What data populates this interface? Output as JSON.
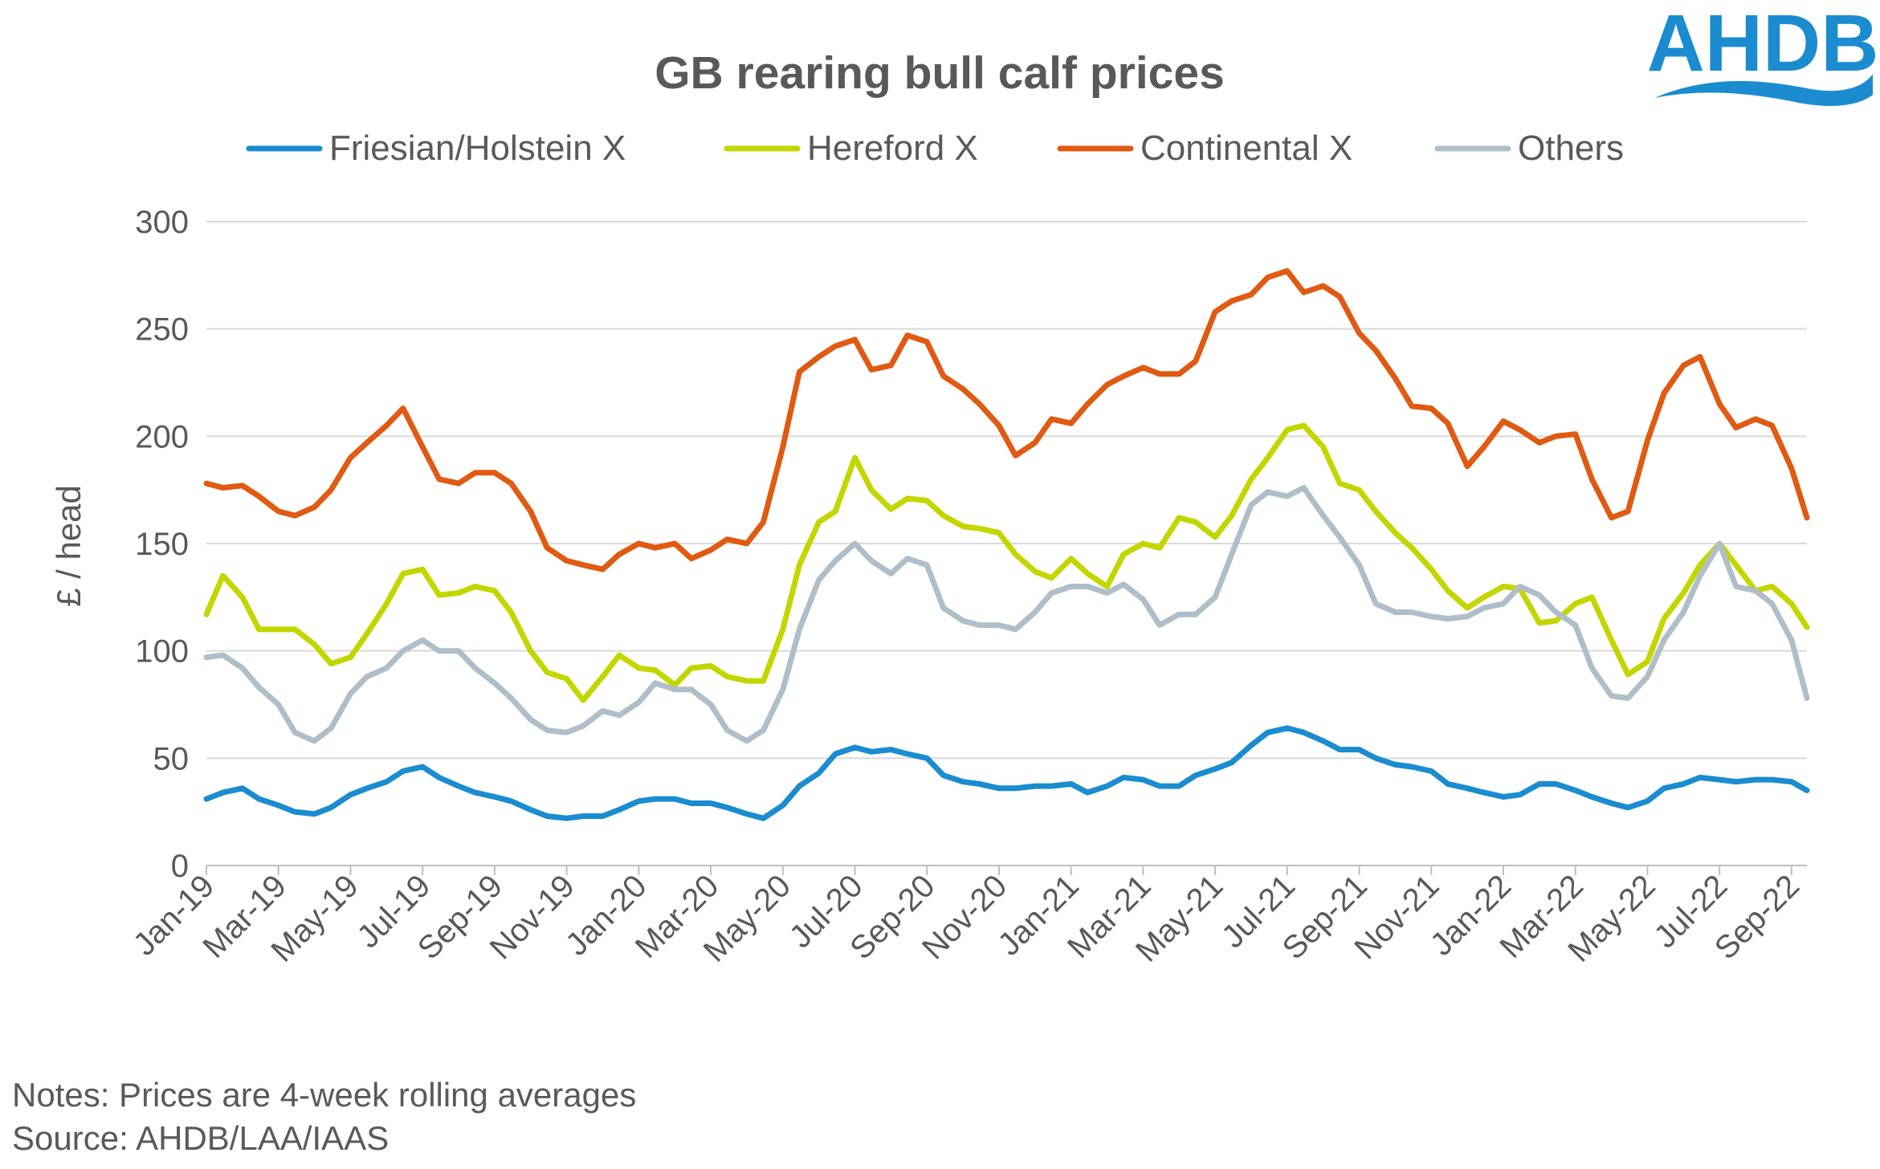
{
  "logo": {
    "text": "AHDB",
    "color": "#1a8ccf"
  },
  "notes": "Notes: Prices are 4-week rolling averages",
  "source": "Source: AHDB/LAA/IAAS",
  "chart_data": {
    "type": "line",
    "title": "GB rearing bull calf prices",
    "xlabel": "",
    "ylabel": "£ / head",
    "ylim": [
      0,
      300
    ],
    "yticks": [
      "0",
      "50",
      "100",
      "150",
      "200",
      "250",
      "300"
    ],
    "xticks": [
      "Jan-19",
      "Mar-19",
      "May-19",
      "Jul-19",
      "Sep-19",
      "Nov-19",
      "Jan-20",
      "Mar-20",
      "May-20",
      "Jul-20",
      "Sep-20",
      "Nov-20",
      "Jan-21",
      "Mar-21",
      "May-21",
      "Jul-21",
      "Sep-21",
      "Nov-21",
      "Jan-22",
      "Mar-22",
      "May-22",
      "Jul-22",
      "Sep-22"
    ],
    "xlim": [
      "2019-01-01",
      "2022-09-14"
    ],
    "grid": "horizontal",
    "legend_position": "top",
    "x": [
      "2019-01-01",
      "2019-01-15",
      "2019-02-01",
      "2019-02-15",
      "2019-03-01",
      "2019-03-15",
      "2019-04-01",
      "2019-04-15",
      "2019-05-01",
      "2019-05-15",
      "2019-06-01",
      "2019-06-15",
      "2019-07-01",
      "2019-07-15",
      "2019-08-01",
      "2019-08-15",
      "2019-09-01",
      "2019-09-15",
      "2019-10-01",
      "2019-10-15",
      "2019-11-01",
      "2019-11-15",
      "2019-12-01",
      "2019-12-15",
      "2020-01-01",
      "2020-01-15",
      "2020-02-01",
      "2020-02-15",
      "2020-03-01",
      "2020-03-15",
      "2020-04-01",
      "2020-04-15",
      "2020-05-01",
      "2020-05-15",
      "2020-06-01",
      "2020-06-15",
      "2020-07-01",
      "2020-07-15",
      "2020-08-01",
      "2020-08-15",
      "2020-09-01",
      "2020-09-15",
      "2020-10-01",
      "2020-10-15",
      "2020-11-01",
      "2020-11-15",
      "2020-12-01",
      "2020-12-15",
      "2021-01-01",
      "2021-01-15",
      "2021-02-01",
      "2021-02-15",
      "2021-03-01",
      "2021-03-15",
      "2021-04-01",
      "2021-04-15",
      "2021-05-01",
      "2021-05-15",
      "2021-06-01",
      "2021-06-15",
      "2021-07-01",
      "2021-07-15",
      "2021-08-01",
      "2021-08-15",
      "2021-09-01",
      "2021-09-15",
      "2021-10-01",
      "2021-10-15",
      "2021-11-01",
      "2021-11-15",
      "2021-12-01",
      "2021-12-15",
      "2022-01-01",
      "2022-01-15",
      "2022-02-01",
      "2022-02-15",
      "2022-03-01",
      "2022-03-15",
      "2022-04-01",
      "2022-04-15",
      "2022-05-01",
      "2022-05-15",
      "2022-06-01",
      "2022-06-15",
      "2022-07-01",
      "2022-07-15",
      "2022-08-01",
      "2022-08-15",
      "2022-09-01",
      "2022-09-14"
    ],
    "series": [
      {
        "name": "Friesian/Holstein X",
        "color": "#1a8ccf",
        "values": [
          31,
          34,
          36,
          31,
          28,
          25,
          24,
          27,
          33,
          36,
          39,
          44,
          46,
          41,
          37,
          34,
          32,
          30,
          26,
          23,
          22,
          23,
          23,
          26,
          30,
          31,
          31,
          29,
          29,
          27,
          24,
          22,
          28,
          37,
          43,
          52,
          55,
          53,
          54,
          52,
          50,
          42,
          39,
          38,
          36,
          36,
          37,
          37,
          38,
          34,
          37,
          41,
          40,
          37,
          37,
          42,
          45,
          48,
          56,
          62,
          64,
          62,
          58,
          54,
          54,
          50,
          47,
          46,
          44,
          38,
          36,
          34,
          32,
          33,
          38,
          38,
          35,
          32,
          29,
          27,
          30,
          36,
          38,
          41,
          40,
          39,
          40,
          40,
          39,
          35
        ]
      },
      {
        "name": "Hereford X",
        "color": "#c3d600",
        "values": [
          117,
          135,
          125,
          110,
          110,
          110,
          103,
          94,
          97,
          108,
          122,
          136,
          138,
          126,
          127,
          130,
          128,
          118,
          100,
          90,
          87,
          77,
          88,
          98,
          92,
          91,
          84,
          92,
          93,
          88,
          86,
          86,
          110,
          140,
          160,
          165,
          190,
          175,
          166,
          171,
          170,
          163,
          158,
          157,
          155,
          145,
          137,
          134,
          143,
          136,
          130,
          145,
          150,
          148,
          162,
          160,
          153,
          163,
          180,
          190,
          203,
          205,
          195,
          178,
          175,
          165,
          155,
          148,
          138,
          128,
          120,
          125,
          130,
          129,
          113,
          114,
          122,
          125,
          105,
          89,
          95,
          115,
          127,
          140,
          150,
          140,
          128,
          130,
          122,
          111
        ]
      },
      {
        "name": "Continental X",
        "color": "#e05a12",
        "values": [
          178,
          176,
          177,
          172,
          165,
          163,
          167,
          175,
          190,
          197,
          205,
          213,
          195,
          180,
          178,
          183,
          183,
          178,
          165,
          148,
          142,
          140,
          138,
          145,
          150,
          148,
          150,
          143,
          147,
          152,
          150,
          160,
          195,
          230,
          237,
          242,
          245,
          231,
          233,
          247,
          244,
          228,
          222,
          215,
          205,
          191,
          197,
          208,
          206,
          215,
          224,
          228,
          232,
          229,
          229,
          235,
          258,
          263,
          266,
          274,
          277,
          267,
          270,
          265,
          248,
          240,
          227,
          214,
          213,
          206,
          186,
          195,
          207,
          203,
          197,
          200,
          201,
          180,
          162,
          165,
          198,
          220,
          233,
          237,
          215,
          204,
          208,
          205,
          185,
          162
        ]
      },
      {
        "name": "Others",
        "color": "#aebfc9",
        "values": [
          97,
          98,
          92,
          83,
          75,
          62,
          58,
          64,
          80,
          88,
          92,
          100,
          105,
          100,
          100,
          92,
          85,
          78,
          68,
          63,
          62,
          65,
          72,
          70,
          76,
          85,
          82,
          82,
          75,
          63,
          58,
          63,
          82,
          110,
          133,
          142,
          150,
          142,
          136,
          143,
          140,
          120,
          114,
          112,
          112,
          110,
          118,
          127,
          130,
          130,
          127,
          131,
          124,
          112,
          117,
          117,
          125,
          145,
          168,
          174,
          172,
          176,
          163,
          153,
          140,
          122,
          118,
          118,
          116,
          115,
          116,
          120,
          122,
          130,
          126,
          118,
          112,
          92,
          79,
          78,
          88,
          105,
          118,
          135,
          150,
          130,
          128,
          122,
          105,
          78
        ]
      }
    ]
  }
}
